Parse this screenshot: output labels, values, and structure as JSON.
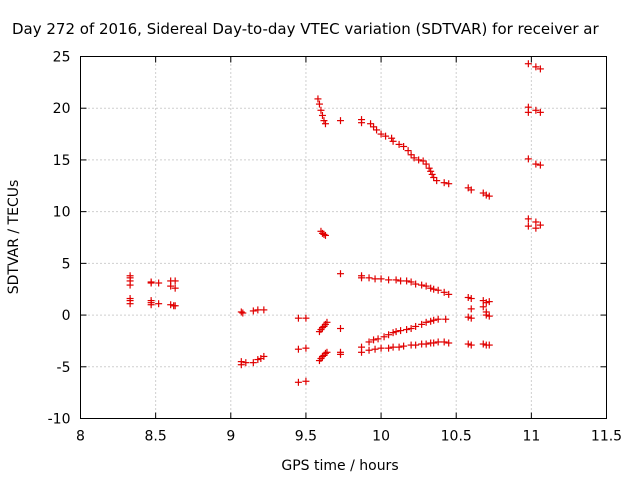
{
  "chart_data": {
    "type": "scatter",
    "title": "Day 272 of 2016, Sidereal Day-to-day VTEC variation (SDTVAR) for receiver ar",
    "xlabel": "GPS time / hours",
    "ylabel": "SDTVAR / TECUs",
    "xlim": [
      8,
      11.5
    ],
    "ylim": [
      -10,
      25
    ],
    "x_ticks": [
      "8",
      "8.5",
      "9",
      "9.5",
      "10",
      "10.5",
      "11",
      "11.5"
    ],
    "y_ticks": [
      "-10",
      "-5",
      "0",
      "5",
      "10",
      "15",
      "20",
      "25"
    ],
    "grid": true,
    "marker": "+",
    "series": [
      {
        "name": "SDTVAR",
        "color": "#e00000",
        "points": [
          [
            8.33,
            3.8
          ],
          [
            8.33,
            3.6
          ],
          [
            8.33,
            3.3
          ],
          [
            8.33,
            2.9
          ],
          [
            8.33,
            1.6
          ],
          [
            8.33,
            1.4
          ],
          [
            8.33,
            1.1
          ],
          [
            8.47,
            3.2
          ],
          [
            8.47,
            3.1
          ],
          [
            8.47,
            1.4
          ],
          [
            8.47,
            1.2
          ],
          [
            8.47,
            1.0
          ],
          [
            8.52,
            3.1
          ],
          [
            8.52,
            1.1
          ],
          [
            8.6,
            3.3
          ],
          [
            8.6,
            2.8
          ],
          [
            8.6,
            1.0
          ],
          [
            8.62,
            0.9
          ],
          [
            8.63,
            3.3
          ],
          [
            8.63,
            2.6
          ],
          [
            8.63,
            0.9
          ],
          [
            9.07,
            0.3
          ],
          [
            9.08,
            0.2
          ],
          [
            9.07,
            -4.5
          ],
          [
            9.07,
            -4.8
          ],
          [
            9.1,
            -4.6
          ],
          [
            9.15,
            0.4
          ],
          [
            9.15,
            -4.6
          ],
          [
            9.18,
            0.5
          ],
          [
            9.18,
            -4.3
          ],
          [
            9.2,
            -4.2
          ],
          [
            9.22,
            0.5
          ],
          [
            9.22,
            -4.0
          ],
          [
            9.45,
            -0.3
          ],
          [
            9.45,
            -3.3
          ],
          [
            9.45,
            -6.5
          ],
          [
            9.5,
            -0.3
          ],
          [
            9.5,
            -3.2
          ],
          [
            9.5,
            -6.4
          ],
          [
            9.58,
            20.9
          ],
          [
            9.59,
            20.4
          ],
          [
            9.6,
            19.8
          ],
          [
            9.61,
            19.3
          ],
          [
            9.62,
            18.8
          ],
          [
            9.63,
            18.5
          ],
          [
            9.6,
            8.1
          ],
          [
            9.61,
            7.9
          ],
          [
            9.62,
            7.8
          ],
          [
            9.63,
            7.7
          ],
          [
            9.59,
            -1.6
          ],
          [
            9.6,
            -1.4
          ],
          [
            9.61,
            -1.2
          ],
          [
            9.62,
            -1.1
          ],
          [
            9.63,
            -0.9
          ],
          [
            9.64,
            -0.7
          ],
          [
            9.59,
            -4.4
          ],
          [
            9.6,
            -4.2
          ],
          [
            9.61,
            -4.0
          ],
          [
            9.62,
            -3.9
          ],
          [
            9.63,
            -3.7
          ],
          [
            9.64,
            -3.6
          ],
          [
            9.73,
            18.8
          ],
          [
            9.73,
            4.0
          ],
          [
            9.73,
            -1.3
          ],
          [
            9.73,
            -3.6
          ],
          [
            9.73,
            -3.8
          ],
          [
            9.87,
            18.9
          ],
          [
            9.87,
            18.6
          ],
          [
            9.87,
            3.8
          ],
          [
            9.87,
            3.6
          ],
          [
            9.87,
            -3.1
          ],
          [
            9.87,
            -3.6
          ],
          [
            9.93,
            18.5
          ],
          [
            9.95,
            18.2
          ],
          [
            9.97,
            17.9
          ],
          [
            10.0,
            17.5
          ],
          [
            10.03,
            17.3
          ],
          [
            10.07,
            17.1
          ],
          [
            10.08,
            16.8
          ],
          [
            10.12,
            16.5
          ],
          [
            10.15,
            16.3
          ],
          [
            10.18,
            15.9
          ],
          [
            10.2,
            15.5
          ],
          [
            10.22,
            15.2
          ],
          [
            10.25,
            15.0
          ],
          [
            10.28,
            14.9
          ],
          [
            10.3,
            14.6
          ],
          [
            10.32,
            14.2
          ],
          [
            10.33,
            13.9
          ],
          [
            10.34,
            13.6
          ],
          [
            10.35,
            13.3
          ],
          [
            10.37,
            13.0
          ],
          [
            10.42,
            12.8
          ],
          [
            10.45,
            12.7
          ],
          [
            9.92,
            3.6
          ],
          [
            9.96,
            3.5
          ],
          [
            10.0,
            3.5
          ],
          [
            10.05,
            3.4
          ],
          [
            10.1,
            3.4
          ],
          [
            10.13,
            3.3
          ],
          [
            10.17,
            3.3
          ],
          [
            10.2,
            3.2
          ],
          [
            10.23,
            3.0
          ],
          [
            10.27,
            2.9
          ],
          [
            10.3,
            2.8
          ],
          [
            10.33,
            2.6
          ],
          [
            10.35,
            2.5
          ],
          [
            10.38,
            2.4
          ],
          [
            10.42,
            2.2
          ],
          [
            10.45,
            2.0
          ],
          [
            9.92,
            -2.6
          ],
          [
            9.95,
            -2.4
          ],
          [
            9.98,
            -2.3
          ],
          [
            10.02,
            -2.1
          ],
          [
            10.05,
            -1.9
          ],
          [
            10.08,
            -1.7
          ],
          [
            10.1,
            -1.6
          ],
          [
            10.13,
            -1.5
          ],
          [
            10.17,
            -1.4
          ],
          [
            10.2,
            -1.3
          ],
          [
            10.23,
            -1.1
          ],
          [
            10.27,
            -0.9
          ],
          [
            10.3,
            -0.7
          ],
          [
            10.33,
            -0.6
          ],
          [
            10.35,
            -0.5
          ],
          [
            10.38,
            -0.4
          ],
          [
            10.43,
            -0.4
          ],
          [
            9.92,
            -3.4
          ],
          [
            9.96,
            -3.3
          ],
          [
            10.0,
            -3.2
          ],
          [
            10.05,
            -3.2
          ],
          [
            10.08,
            -3.1
          ],
          [
            10.12,
            -3.1
          ],
          [
            10.15,
            -3.0
          ],
          [
            10.2,
            -2.9
          ],
          [
            10.23,
            -2.9
          ],
          [
            10.27,
            -2.8
          ],
          [
            10.3,
            -2.8
          ],
          [
            10.33,
            -2.7
          ],
          [
            10.35,
            -2.7
          ],
          [
            10.38,
            -2.6
          ],
          [
            10.42,
            -2.6
          ],
          [
            10.45,
            -2.7
          ],
          [
            10.58,
            12.3
          ],
          [
            10.6,
            12.1
          ],
          [
            10.58,
            1.7
          ],
          [
            10.6,
            1.6
          ],
          [
            10.6,
            0.6
          ],
          [
            10.58,
            -0.2
          ],
          [
            10.6,
            -0.3
          ],
          [
            10.58,
            -2.8
          ],
          [
            10.6,
            -2.9
          ],
          [
            10.68,
            11.8
          ],
          [
            10.7,
            11.6
          ],
          [
            10.72,
            11.5
          ],
          [
            10.68,
            1.4
          ],
          [
            10.7,
            1.2
          ],
          [
            10.68,
            0.8
          ],
          [
            10.7,
            0.3
          ],
          [
            10.7,
            0.0
          ],
          [
            10.72,
            1.3
          ],
          [
            10.72,
            -0.1
          ],
          [
            10.68,
            -2.8
          ],
          [
            10.7,
            -2.9
          ],
          [
            10.72,
            -2.9
          ],
          [
            10.98,
            24.3
          ],
          [
            10.98,
            20.1
          ],
          [
            10.98,
            19.6
          ],
          [
            10.98,
            15.1
          ],
          [
            10.98,
            9.3
          ],
          [
            10.98,
            8.6
          ],
          [
            11.03,
            24.0
          ],
          [
            11.03,
            19.8
          ],
          [
            11.03,
            14.6
          ],
          [
            11.03,
            9.0
          ],
          [
            11.03,
            8.4
          ],
          [
            11.06,
            23.8
          ],
          [
            11.06,
            19.6
          ],
          [
            11.06,
            14.5
          ],
          [
            11.06,
            8.7
          ]
        ]
      }
    ]
  }
}
